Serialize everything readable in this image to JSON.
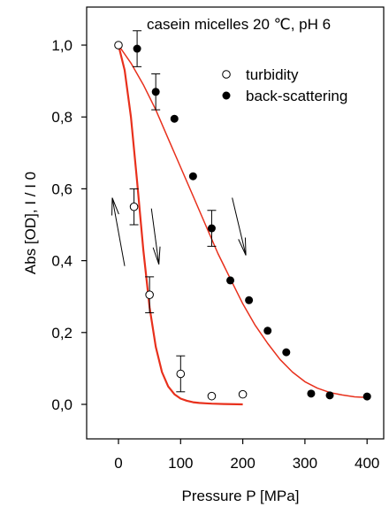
{
  "chart_data": {
    "type": "scatter",
    "title": "casein micelles 20 ℃, pH 6",
    "xlabel": "Pressure P [MPa]",
    "ylabel": "Abs [OD], I / I 0",
    "xlim": [
      -50,
      430
    ],
    "ylim": [
      -0.1,
      1.1
    ],
    "xticks": [
      0,
      100,
      200,
      300,
      400
    ],
    "xtick_labels": [
      "0",
      "100",
      "200",
      "300",
      "400"
    ],
    "yticks": [
      0.0,
      0.2,
      0.4,
      0.6,
      0.8,
      1.0
    ],
    "ytick_labels": [
      "0,0",
      "0,2",
      "0,4",
      "0,6",
      "0,8",
      "1,0"
    ],
    "grid": false,
    "legend_position": "top-right",
    "series": [
      {
        "name": "turbidity",
        "marker": "open-circle",
        "x": [
          0,
          25,
          50,
          100,
          150,
          200
        ],
        "y": [
          1.0,
          0.55,
          0.305,
          0.085,
          0.023,
          0.028
        ],
        "yerr": [
          0,
          0.05,
          0.05,
          0.05,
          0,
          0
        ]
      },
      {
        "name": "back-scattering",
        "marker": "filled-circle",
        "x": [
          30,
          60,
          90,
          120,
          150,
          180,
          210,
          240,
          270,
          310,
          340,
          400
        ],
        "y": [
          0.99,
          0.87,
          0.795,
          0.635,
          0.49,
          0.345,
          0.29,
          0.205,
          0.145,
          0.03,
          0.025,
          0.022
        ],
        "yerr": [
          0.05,
          0.05,
          0,
          0,
          0.05,
          0,
          0,
          0,
          0,
          0,
          0,
          0
        ]
      }
    ],
    "fit_curves": [
      {
        "color": "#e8301c",
        "x": [
          0,
          10,
          20,
          30,
          40,
          50,
          60,
          70,
          80,
          90,
          100,
          110,
          120,
          130,
          140,
          150,
          170,
          200
        ],
        "y": [
          1.0,
          0.93,
          0.8,
          0.62,
          0.43,
          0.27,
          0.16,
          0.09,
          0.05,
          0.028,
          0.016,
          0.01,
          0.006,
          0.004,
          0.003,
          0.002,
          0.001,
          0.0
        ]
      },
      {
        "color": "#e8301c",
        "x": [
          0,
          20,
          40,
          60,
          80,
          100,
          120,
          140,
          160,
          180,
          200,
          220,
          240,
          260,
          280,
          300,
          320,
          340,
          360,
          380,
          400
        ],
        "y": [
          1.0,
          0.95,
          0.89,
          0.82,
          0.74,
          0.66,
          0.58,
          0.5,
          0.42,
          0.35,
          0.28,
          0.22,
          0.17,
          0.125,
          0.09,
          0.063,
          0.045,
          0.033,
          0.026,
          0.021,
          0.019
        ]
      }
    ],
    "annotations": [
      {
        "type": "arrow",
        "direction": "up",
        "x_from": 10,
        "y_from": 0.385,
        "x_to": -10,
        "y_to": 0.575
      },
      {
        "type": "arrow",
        "direction": "down",
        "x_from": 53,
        "y_from": 0.545,
        "x_to": 65,
        "y_to": 0.39
      },
      {
        "type": "arrow",
        "direction": "down",
        "x_from": 183,
        "y_from": 0.575,
        "x_to": 205,
        "y_to": 0.415
      }
    ]
  }
}
